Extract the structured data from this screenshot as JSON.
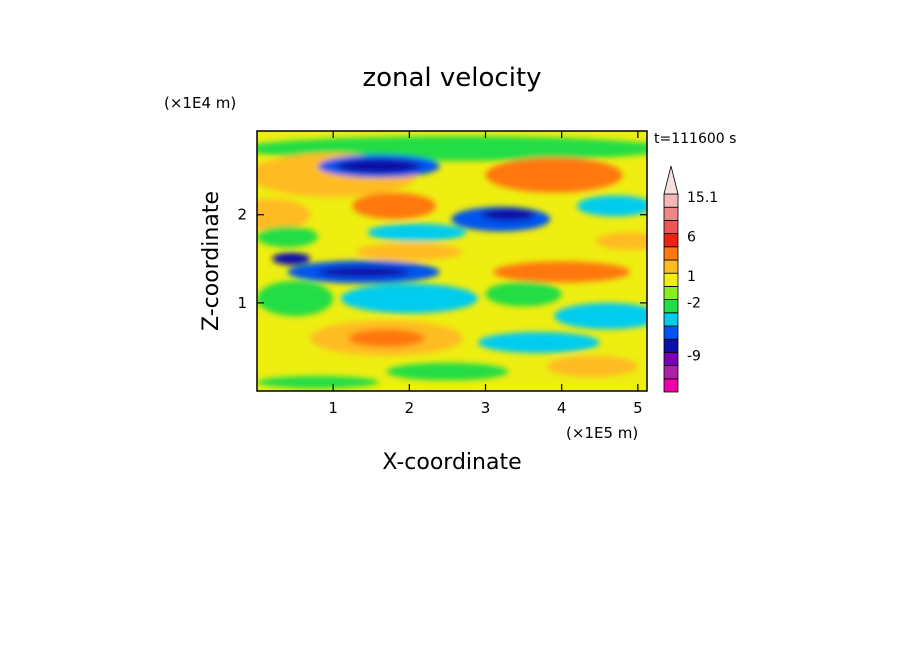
{
  "chart_data": {
    "type": "heatmap",
    "title": "zonal velocity",
    "xlabel": "X-coordinate",
    "ylabel": "Z-coordinate",
    "x_scale_label": "(×1E5 m)",
    "y_scale_label": "(×1E4 m)",
    "time_label": "t=111600 s",
    "xlim": [
      0,
      5.12
    ],
    "ylim": [
      0,
      2.95
    ],
    "x_ticks": [
      "1",
      "2",
      "3",
      "4",
      "5"
    ],
    "y_ticks": [
      "1",
      "2"
    ],
    "colorbar": {
      "levels": [
        {
          "color": "#ee00aa"
        },
        {
          "color": "#aa22aa"
        },
        {
          "color": "#7a00b8"
        },
        {
          "color": "#0a10a8"
        },
        {
          "color": "#0055ee"
        },
        {
          "color": "#00ccee"
        },
        {
          "color": "#22dd44"
        },
        {
          "color": "#88ee22"
        },
        {
          "color": "#eeee11"
        },
        {
          "color": "#ffbb22"
        },
        {
          "color": "#ff7711"
        },
        {
          "color": "#ee2211"
        },
        {
          "color": "#ee5555"
        },
        {
          "color": "#ee8888"
        },
        {
          "color": "#f5b8b8"
        }
      ],
      "tick_labels": [
        "15.1",
        "6",
        "1",
        "-2",
        "-9"
      ],
      "max_arrow_color": "#f5e0e0"
    },
    "colors": {
      "background": "#ffffff",
      "frame": "#000000"
    }
  }
}
